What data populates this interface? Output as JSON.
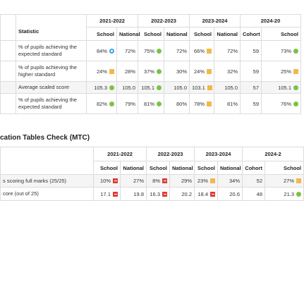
{
  "table1": {
    "statistic_header": "Statistic",
    "years": [
      "2021-2022",
      "2022-2023",
      "2023-2024",
      "2024-20"
    ],
    "subheaders": [
      "School",
      "National",
      "School",
      "National",
      "School",
      "National",
      "Cohort",
      "School"
    ],
    "rows": [
      {
        "label": "% of pupils achieving the expected standard",
        "cells": [
          {
            "text": "84%",
            "indicator": {
              "color": "#3aa0e8",
              "shape": "dot"
            }
          },
          {
            "text": "72%"
          },
          {
            "text": "75%",
            "indicator": {
              "color": "#7cc242",
              "shape": "circle"
            }
          },
          {
            "text": "72%"
          },
          {
            "text": "66%",
            "indicator": {
              "color": "#f2b84b",
              "shape": "square"
            }
          },
          {
            "text": "72%"
          },
          {
            "text": "59"
          },
          {
            "text": "73%",
            "indicator": {
              "color": "#7cc242",
              "shape": "circle"
            }
          }
        ]
      },
      {
        "label": "% of pupils achieving the higher standard",
        "cells": [
          {
            "text": "24%",
            "indicator": {
              "color": "#f2b84b",
              "shape": "square"
            }
          },
          {
            "text": "28%"
          },
          {
            "text": "37%",
            "indicator": {
              "color": "#7cc242",
              "shape": "circle"
            }
          },
          {
            "text": "30%"
          },
          {
            "text": "24%",
            "indicator": {
              "color": "#f2b84b",
              "shape": "square"
            }
          },
          {
            "text": "32%"
          },
          {
            "text": "59"
          },
          {
            "text": "25%",
            "indicator": {
              "color": "#f2b84b",
              "shape": "square"
            }
          }
        ]
      },
      {
        "label": "Average scaled score",
        "cells": [
          {
            "text": "105.3",
            "indicator": {
              "color": "#7cc242",
              "shape": "circle"
            }
          },
          {
            "text": "105.0"
          },
          {
            "text": "105.1",
            "indicator": {
              "color": "#7cc242",
              "shape": "circle"
            }
          },
          {
            "text": "105.0"
          },
          {
            "text": "103.1",
            "indicator": {
              "color": "#f2b84b",
              "shape": "square"
            }
          },
          {
            "text": "105.0"
          },
          {
            "text": "57"
          },
          {
            "text": "105.1",
            "indicator": {
              "color": "#7cc242",
              "shape": "circle"
            }
          }
        ]
      },
      {
        "label": "% of pupils achieving the expected standard",
        "cells": [
          {
            "text": "82%",
            "indicator": {
              "color": "#7cc242",
              "shape": "circle"
            }
          },
          {
            "text": "79%"
          },
          {
            "text": "81%",
            "indicator": {
              "color": "#7cc242",
              "shape": "circle"
            }
          },
          {
            "text": "80%"
          },
          {
            "text": "78%",
            "indicator": {
              "color": "#f2b84b",
              "shape": "square"
            }
          },
          {
            "text": "81%"
          },
          {
            "text": "59"
          },
          {
            "text": "76%",
            "indicator": {
              "color": "#7cc242",
              "shape": "circle"
            }
          }
        ]
      }
    ]
  },
  "section_title": "cation Tables Check (MTC)",
  "table2": {
    "years": [
      "2021-2022",
      "2022-2023",
      "2023-2024",
      "2024-2"
    ],
    "subheaders": [
      "School",
      "National",
      "School",
      "National",
      "School",
      "National",
      "Cohort",
      "School"
    ],
    "rows": [
      {
        "label": "s scoring full marks (25/25)",
        "cells": [
          {
            "text": "10%",
            "indicator": {
              "color": "#e03a3a",
              "shape": "minus"
            }
          },
          {
            "text": "27%"
          },
          {
            "text": "8%",
            "indicator": {
              "color": "#e03a3a",
              "shape": "minus"
            }
          },
          {
            "text": "29%"
          },
          {
            "text": "23%",
            "indicator": {
              "color": "#f2b84b",
              "shape": "square"
            }
          },
          {
            "text": "34%"
          },
          {
            "text": "52"
          },
          {
            "text": "27%",
            "indicator": {
              "color": "#f2b84b",
              "shape": "square"
            }
          }
        ]
      },
      {
        "label": "core (out of 25)",
        "cells": [
          {
            "text": "17.1",
            "indicator": {
              "color": "#e03a3a",
              "shape": "minus"
            }
          },
          {
            "text": "19.8"
          },
          {
            "text": "16.3",
            "indicator": {
              "color": "#e03a3a",
              "shape": "minus"
            }
          },
          {
            "text": "20.2"
          },
          {
            "text": "18.4",
            "indicator": {
              "color": "#e03a3a",
              "shape": "minus"
            }
          },
          {
            "text": "20.6"
          },
          {
            "text": "48"
          },
          {
            "text": "21.3",
            "indicator": {
              "color": "#7cc242",
              "shape": "circle"
            }
          }
        ]
      }
    ]
  }
}
